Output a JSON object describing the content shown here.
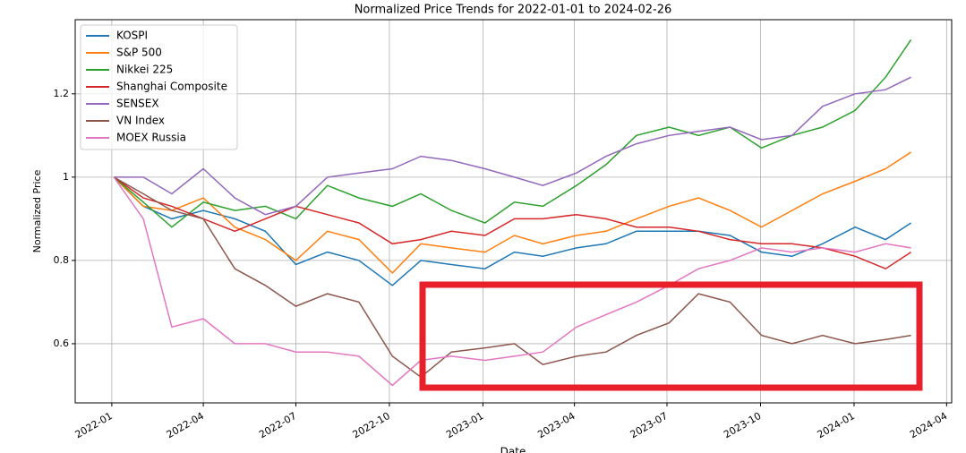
{
  "chart_data": {
    "type": "line",
    "title": "Normalized Price Trends for 2022-01-01 to 2024-02-26",
    "x_label": "Date",
    "y_label": "Normalized Price",
    "x": [
      "2022-01-03",
      "2022-02-01",
      "2022-03-01",
      "2022-04-01",
      "2022-05-02",
      "2022-06-01",
      "2022-07-01",
      "2022-08-01",
      "2022-09-01",
      "2022-10-04",
      "2022-11-01",
      "2022-12-01",
      "2023-01-03",
      "2023-02-01",
      "2023-03-01",
      "2023-04-03",
      "2023-05-02",
      "2023-06-01",
      "2023-07-03",
      "2023-08-01",
      "2023-09-01",
      "2023-10-02",
      "2023-11-01",
      "2023-12-01",
      "2024-01-02",
      "2024-02-01",
      "2024-02-26"
    ],
    "series": [
      {
        "name": "KOSPI",
        "color": "#1f77b4",
        "values": [
          1.0,
          0.93,
          0.9,
          0.92,
          0.9,
          0.87,
          0.79,
          0.82,
          0.8,
          0.74,
          0.8,
          0.79,
          0.78,
          0.82,
          0.81,
          0.83,
          0.84,
          0.87,
          0.87,
          0.87,
          0.86,
          0.82,
          0.81,
          0.84,
          0.88,
          0.85,
          0.89
        ]
      },
      {
        "name": "S&P 500",
        "color": "#ff7f0e",
        "values": [
          1.0,
          0.93,
          0.92,
          0.95,
          0.88,
          0.85,
          0.8,
          0.87,
          0.85,
          0.77,
          0.84,
          0.83,
          0.82,
          0.86,
          0.84,
          0.86,
          0.87,
          0.9,
          0.93,
          0.95,
          0.92,
          0.88,
          0.92,
          0.96,
          0.99,
          1.02,
          1.06
        ]
      },
      {
        "name": "Nikkei 225",
        "color": "#2ca02c",
        "values": [
          1.0,
          0.94,
          0.88,
          0.94,
          0.92,
          0.93,
          0.9,
          0.98,
          0.95,
          0.93,
          0.96,
          0.92,
          0.89,
          0.94,
          0.93,
          0.98,
          1.03,
          1.1,
          1.12,
          1.1,
          1.12,
          1.07,
          1.1,
          1.12,
          1.16,
          1.24,
          1.33
        ]
      },
      {
        "name": "Shanghai Composite",
        "color": "#d62728",
        "values": [
          1.0,
          0.95,
          0.93,
          0.9,
          0.87,
          0.9,
          0.93,
          0.91,
          0.89,
          0.84,
          0.85,
          0.87,
          0.86,
          0.9,
          0.9,
          0.91,
          0.9,
          0.88,
          0.88,
          0.87,
          0.85,
          0.84,
          0.84,
          0.83,
          0.81,
          0.78,
          0.82
        ]
      },
      {
        "name": "SENSEX",
        "color": "#9467bd",
        "values": [
          1.0,
          1.0,
          0.96,
          1.02,
          0.95,
          0.91,
          0.93,
          1.0,
          1.01,
          1.02,
          1.05,
          1.04,
          1.02,
          1.0,
          0.98,
          1.01,
          1.05,
          1.08,
          1.1,
          1.11,
          1.12,
          1.09,
          1.1,
          1.17,
          1.2,
          1.21,
          1.24
        ]
      },
      {
        "name": "VN Index",
        "color": "#8c564b",
        "values": [
          1.0,
          0.96,
          0.92,
          0.9,
          0.78,
          0.74,
          0.69,
          0.72,
          0.7,
          0.57,
          0.52,
          0.58,
          0.59,
          0.6,
          0.55,
          0.57,
          0.58,
          0.62,
          0.65,
          0.72,
          0.7,
          0.62,
          0.6,
          0.62,
          0.6,
          0.61,
          0.62
        ]
      },
      {
        "name": "MOEX Russia",
        "color": "#e377c2",
        "values": [
          1.0,
          0.9,
          0.64,
          0.66,
          0.6,
          0.6,
          0.58,
          0.58,
          0.57,
          0.5,
          0.56,
          0.57,
          0.56,
          0.57,
          0.58,
          0.64,
          0.67,
          0.7,
          0.74,
          0.78,
          0.8,
          0.83,
          0.82,
          0.83,
          0.82,
          0.84,
          0.83
        ]
      }
    ],
    "xlim": [
      "2021-11-26",
      "2024-04-06"
    ],
    "xticks": [
      {
        "value": "2022-01-01",
        "label": "2022-01"
      },
      {
        "value": "2022-04-01",
        "label": "2022-04"
      },
      {
        "value": "2022-07-01",
        "label": "2022-07"
      },
      {
        "value": "2022-10-01",
        "label": "2022-10"
      },
      {
        "value": "2023-01-01",
        "label": "2023-01"
      },
      {
        "value": "2023-04-01",
        "label": "2023-04"
      },
      {
        "value": "2023-07-01",
        "label": "2023-07"
      },
      {
        "value": "2023-10-01",
        "label": "2023-10"
      },
      {
        "value": "2024-01-01",
        "label": "2024-01"
      },
      {
        "value": "2024-04-01",
        "label": "2024-04"
      }
    ],
    "ylim": [
      0.458,
      1.378
    ],
    "yticks": [
      0.6,
      0.8,
      1.0,
      1.2
    ],
    "grid": true,
    "legend": "upper left"
  }
}
